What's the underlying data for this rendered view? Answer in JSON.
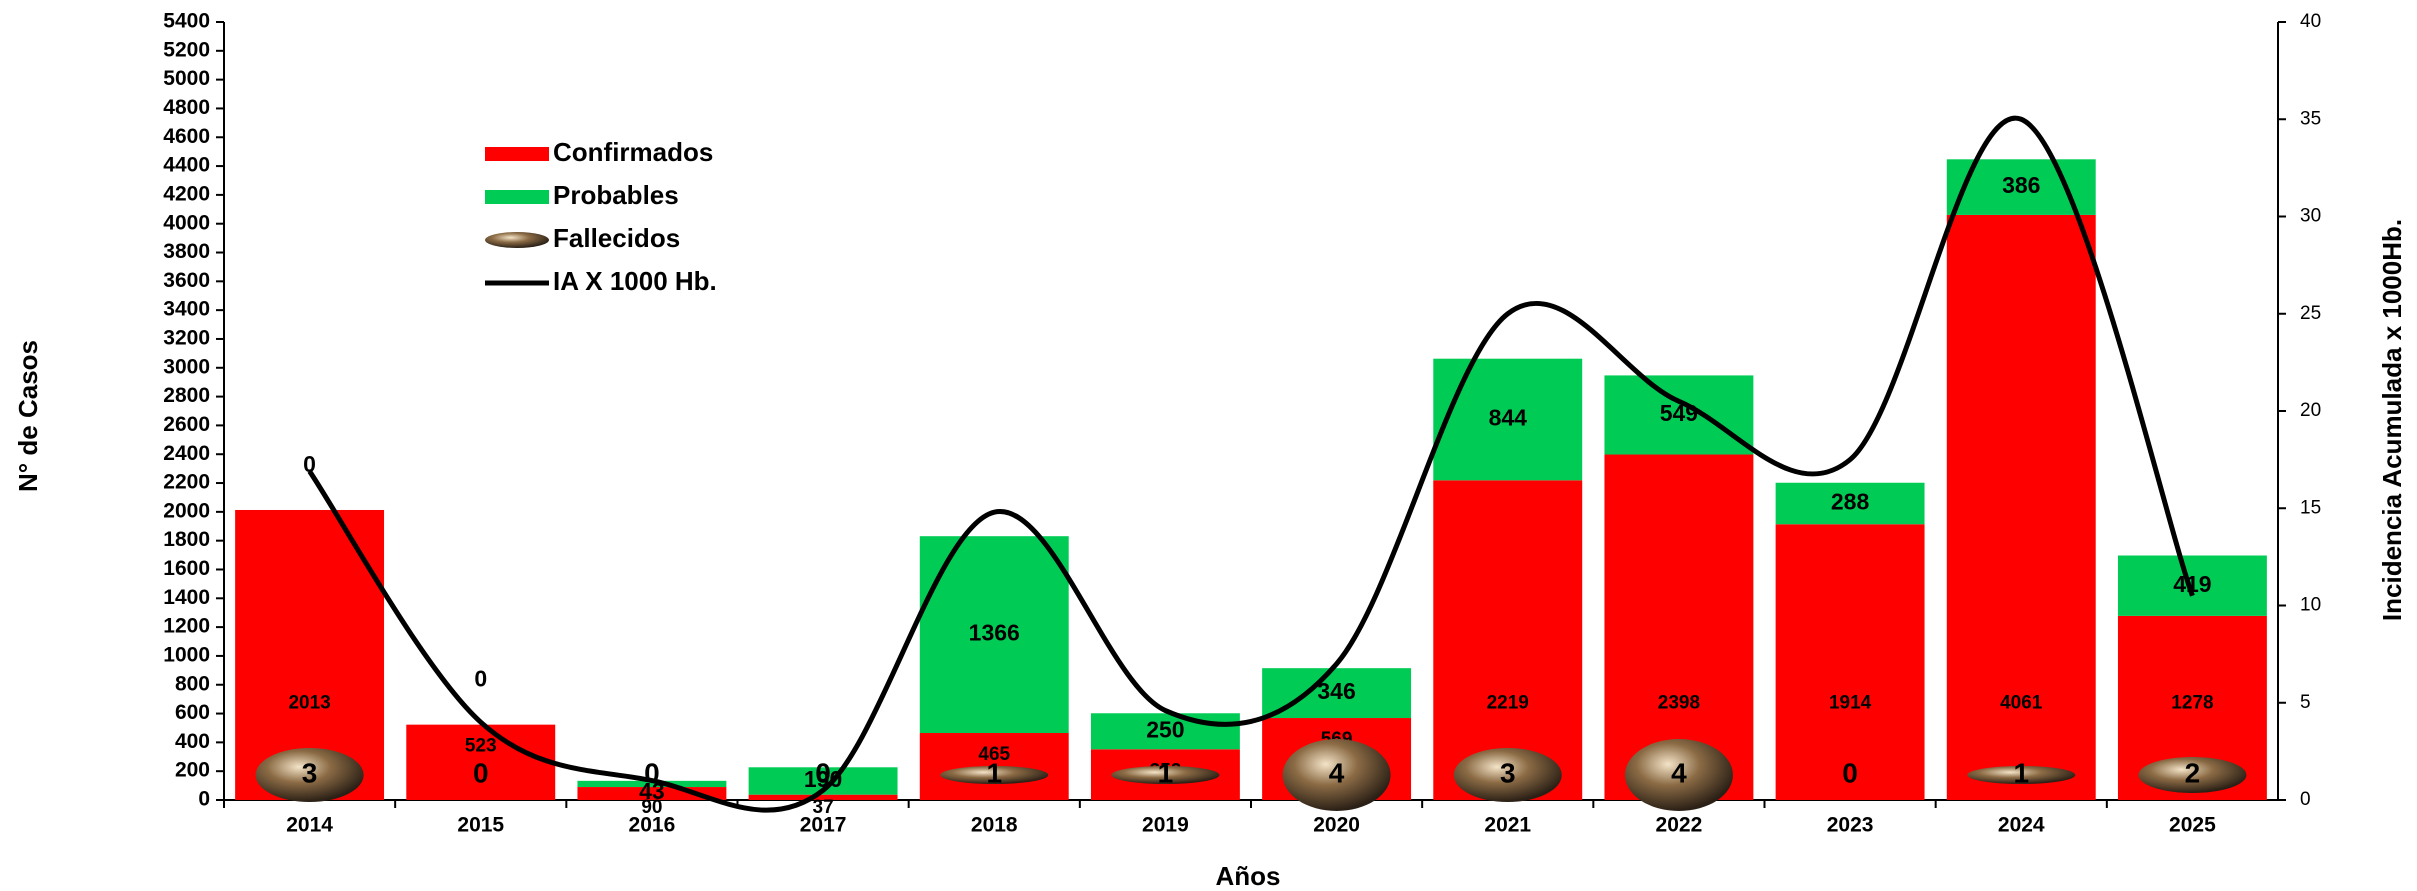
{
  "chart_data": {
    "type": "bar",
    "stacked": true,
    "x_label": "Años",
    "y_label": "N° de Casos",
    "y2_label": "Incidencia Acumulada x 1000Hb.",
    "categories": [
      "2014",
      "2015",
      "2016",
      "2017",
      "2018",
      "2019",
      "2020",
      "2021",
      "2022",
      "2023",
      "2024",
      "2025"
    ],
    "series": [
      {
        "name": "Confirmados",
        "color": "#ff0000",
        "values": [
          2013,
          523,
          90,
          37,
          465,
          352,
          569,
          2219,
          2398,
          1914,
          4061,
          1278
        ]
      },
      {
        "name": "Probables",
        "color": "#00cc55",
        "values": [
          0,
          0,
          43,
          190,
          1366,
          250,
          346,
          844,
          549,
          288,
          386,
          419
        ]
      },
      {
        "name": "Fallecidos",
        "color": "#8b6b45",
        "type": "marker",
        "values": [
          3,
          0,
          0,
          0,
          1,
          1,
          4,
          3,
          4,
          0,
          1,
          2
        ]
      },
      {
        "name": "IA X 1000 Hb.",
        "color": "#000000",
        "type": "line",
        "axis": "y2",
        "values": [
          16.9,
          4,
          1,
          0.5,
          14.8,
          4.6,
          7,
          25,
          20.5,
          17.5,
          35,
          10.5
        ]
      }
    ],
    "ylim": [
      0,
      5400
    ],
    "yticks": [
      0,
      200,
      400,
      600,
      800,
      1000,
      1200,
      1400,
      1600,
      1800,
      2000,
      2200,
      2400,
      2600,
      2800,
      3000,
      3200,
      3400,
      3600,
      3800,
      4000,
      4200,
      4400,
      4600,
      4800,
      5000,
      5200,
      5400
    ],
    "y2lim": [
      0,
      40
    ],
    "y2ticks": [
      0,
      5,
      10,
      15,
      20,
      25,
      30,
      35,
      40
    ]
  }
}
